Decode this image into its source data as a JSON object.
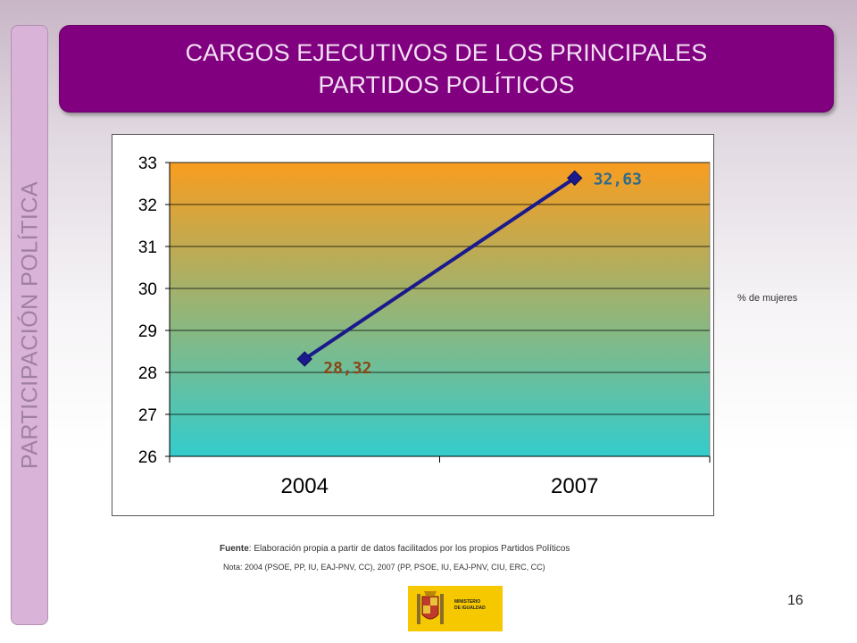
{
  "title": {
    "line1": "CARGOS EJECUTIVOS DE LOS PRINCIPALES",
    "line2": "PARTIDOS POLÍTICOS"
  },
  "side_label": "PARTICIPACIÓN POLÍTICA",
  "unit_label": "% de mujeres",
  "source": {
    "prefix": "Fuente",
    "text": ": Elaboración propia a partir de datos facilitados por los propios Partidos Políticos"
  },
  "note": "Nota: 2004 (PSOE, PP, IU, EAJ-PNV, CC), 2007 (PP, PSOE, IU, EAJ-PNV, CIU, ERC, CC)",
  "page_number": "16",
  "logo": {
    "line1": "MINISTERIO",
    "line2": "DE IGUALDAD"
  },
  "colors": {
    "title_bg": "#800080",
    "line": "#1a1a8c",
    "label_2004": "#8b4513",
    "label_2007": "#2e6b8a",
    "plot_top": "#f99d20",
    "plot_bottom": "#33cccc"
  },
  "chart_data": {
    "type": "line",
    "categories": [
      "2004",
      "2007"
    ],
    "series": [
      {
        "values": [
          28.32,
          32.63
        ]
      }
    ],
    "data_labels": [
      "28,32",
      "32,63"
    ],
    "ylim": [
      26,
      33
    ],
    "yticks": [
      "26",
      "27",
      "28",
      "29",
      "30",
      "31",
      "32",
      "33"
    ],
    "grid": true,
    "title": "",
    "xlabel": "",
    "ylabel": ""
  }
}
